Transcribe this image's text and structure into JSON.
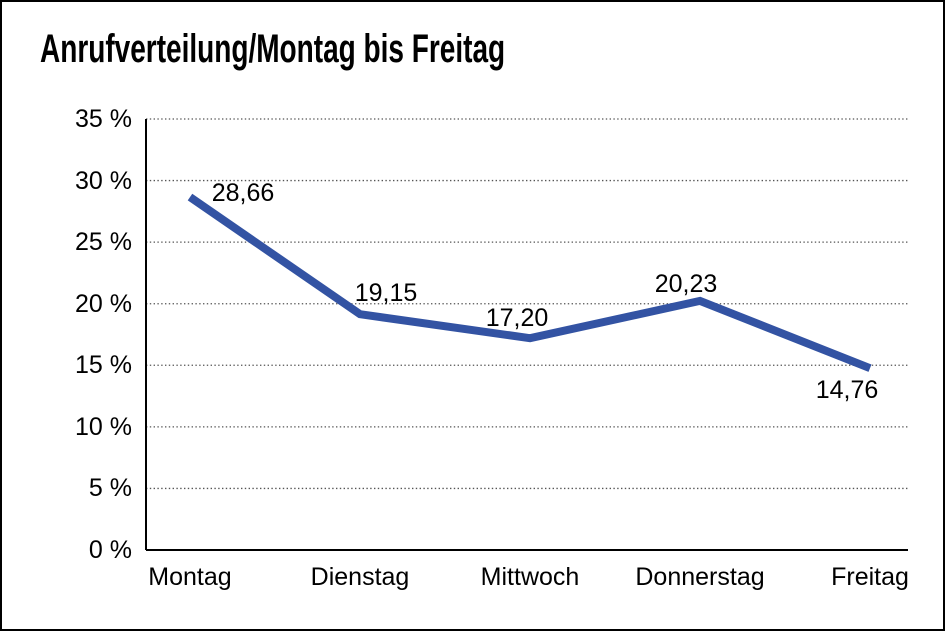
{
  "title": "Anrufverteilung/Montag bis Freitag",
  "chart_data": {
    "type": "line",
    "title": "Anrufverteilung/Montag bis Freitag",
    "categories": [
      "Montag",
      "Dienstag",
      "Mittwoch",
      "Donnerstag",
      "Freitag"
    ],
    "series": [
      {
        "name": "Anrufverteilung",
        "values": [
          28.66,
          19.15,
          17.2,
          20.23,
          14.76
        ]
      }
    ],
    "point_labels": [
      "28,66",
      "19,15",
      "17,20",
      "20,23",
      "14,76"
    ],
    "y_ticks": [
      "35 %",
      "30 %",
      "25 %",
      "20 %",
      "15 %",
      "10 %",
      "5 %",
      "0 %"
    ],
    "y_tick_values": [
      35,
      30,
      25,
      20,
      15,
      10,
      5,
      0
    ],
    "ylim": [
      0,
      35
    ],
    "xlabel": "",
    "ylabel": "",
    "grid": "horizontal-dotted",
    "legend_position": "none",
    "line_color": "#3353a3",
    "axis_color": "#000000",
    "gridline_color": "#555555",
    "text_color": "#000000"
  }
}
